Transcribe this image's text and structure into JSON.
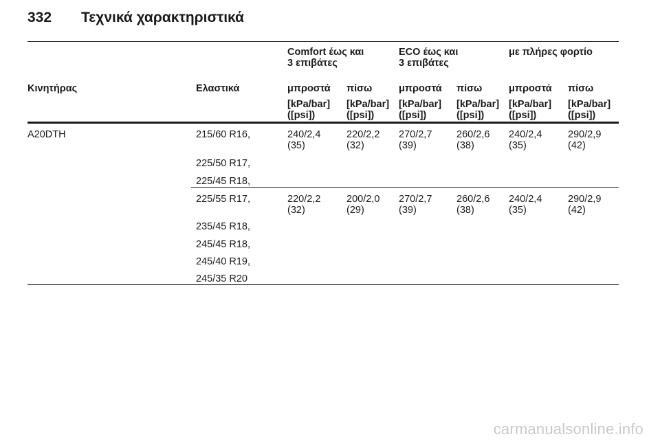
{
  "page": {
    "number": "332",
    "title": "Τεχνικά χαρακτηριστικά"
  },
  "table": {
    "groups": [
      {
        "line1": "Comfort έως και",
        "line2": "3 επιβάτες"
      },
      {
        "line1": "ECO έως και",
        "line2": "3 επιβάτες"
      },
      {
        "line1": "με πλήρες φορτίο",
        "line2": ""
      }
    ],
    "columns": {
      "engine": "Κινητήρας",
      "tyres": "Ελαστικά",
      "front": "μπροστά",
      "rear": "πίσω"
    },
    "unit": {
      "line1": "[kPa/bar]",
      "line2": "([psi])"
    },
    "engine": "A20DTH",
    "rows": [
      {
        "tyres": [
          "215/60 R16,",
          "225/50 R17,",
          "225/45 R18,"
        ],
        "values": [
          {
            "top": "240/2,4",
            "bottom": "(35)"
          },
          {
            "top": "220/2,2",
            "bottom": "(32)"
          },
          {
            "top": "270/2,7",
            "bottom": "(39)"
          },
          {
            "top": "260/2,6",
            "bottom": "(38)"
          },
          {
            "top": "240/2,4",
            "bottom": "(35)"
          },
          {
            "top": "290/2,9",
            "bottom": "(42)"
          }
        ]
      },
      {
        "tyres": [
          "225/55 R17,",
          "235/45 R18,",
          "245/45 R18,",
          "245/40 R19,",
          "245/35 R20"
        ],
        "values": [
          {
            "top": "220/2,2",
            "bottom": "(32)"
          },
          {
            "top": "200/2,0",
            "bottom": "(29)"
          },
          {
            "top": "270/2,7",
            "bottom": "(39)"
          },
          {
            "top": "260/2,6",
            "bottom": "(38)"
          },
          {
            "top": "240/2,4",
            "bottom": "(35)"
          },
          {
            "top": "290/2,9",
            "bottom": "(42)"
          }
        ]
      }
    ]
  },
  "watermark": "carmanualsonline.info"
}
